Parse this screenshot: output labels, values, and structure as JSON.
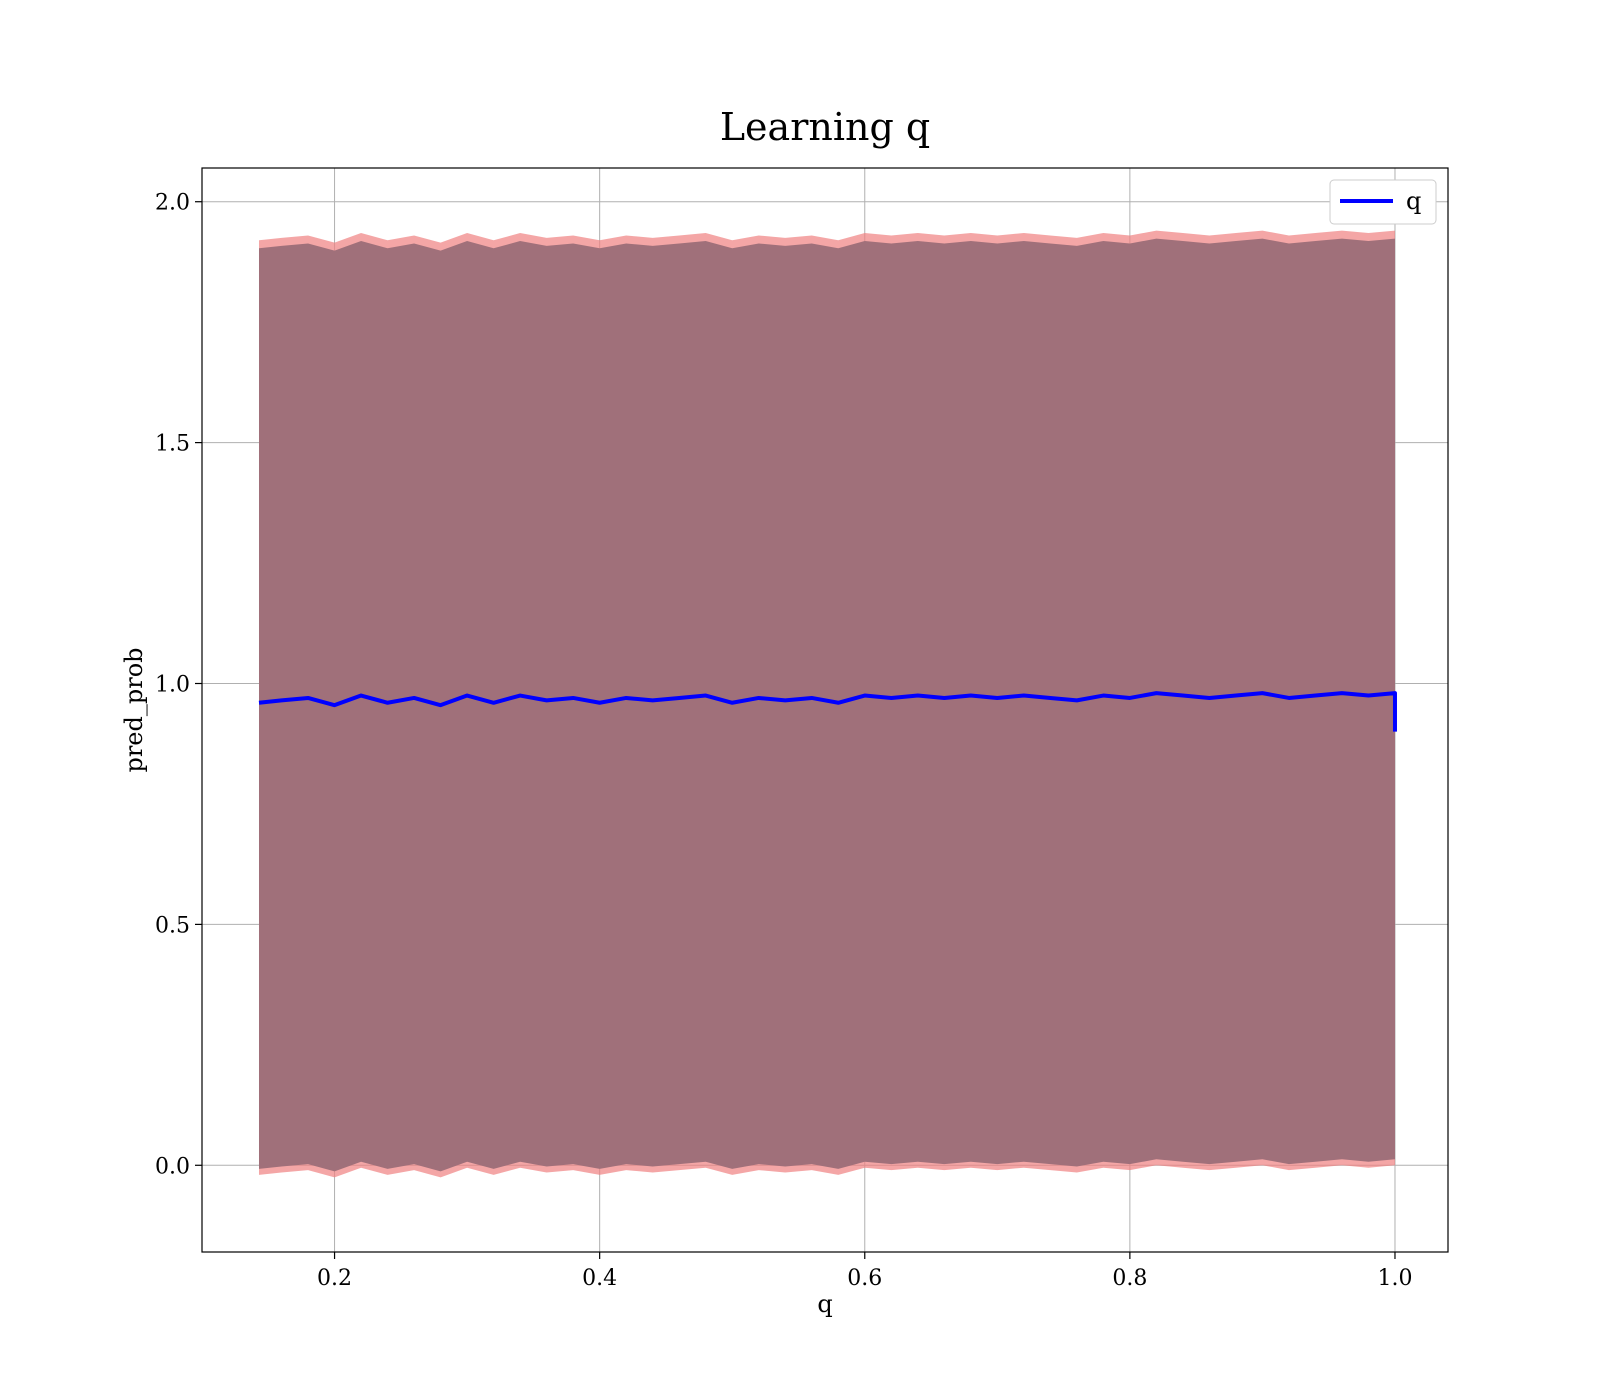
{
  "chart_data": {
    "type": "line",
    "title": "Learning q",
    "xlabel": "q",
    "ylabel": "pred_prob",
    "xlim": [
      0.1,
      1.04
    ],
    "ylim": [
      -0.18,
      2.07
    ],
    "xticks": [
      0.2,
      0.4,
      0.6,
      0.8,
      1.0
    ],
    "xtick_labels": [
      "0.2",
      "0.4",
      "0.6",
      "0.8",
      "1.0"
    ],
    "yticks": [
      0.0,
      0.5,
      1.0,
      1.5,
      2.0
    ],
    "ytick_labels": [
      "0.0",
      "0.5",
      "1.0",
      "1.5",
      "2.0"
    ],
    "grid": true,
    "legend_position": "top-right",
    "series": [
      {
        "name": "q",
        "color": "#0000ff",
        "x": [
          0.143,
          0.16,
          0.18,
          0.2,
          0.22,
          0.24,
          0.26,
          0.28,
          0.3,
          0.32,
          0.34,
          0.36,
          0.38,
          0.4,
          0.42,
          0.44,
          0.46,
          0.48,
          0.5,
          0.52,
          0.54,
          0.56,
          0.58,
          0.6,
          0.62,
          0.64,
          0.66,
          0.68,
          0.7,
          0.72,
          0.74,
          0.76,
          0.78,
          0.8,
          0.82,
          0.84,
          0.86,
          0.88,
          0.9,
          0.92,
          0.94,
          0.96,
          0.98,
          1.0,
          1.0
        ],
        "values": [
          0.96,
          0.965,
          0.97,
          0.955,
          0.975,
          0.96,
          0.97,
          0.955,
          0.975,
          0.96,
          0.975,
          0.965,
          0.97,
          0.96,
          0.97,
          0.965,
          0.97,
          0.975,
          0.96,
          0.97,
          0.965,
          0.97,
          0.96,
          0.975,
          0.97,
          0.975,
          0.97,
          0.975,
          0.97,
          0.975,
          0.97,
          0.965,
          0.975,
          0.97,
          0.98,
          0.975,
          0.97,
          0.975,
          0.98,
          0.97,
          0.975,
          0.98,
          0.975,
          0.98,
          0.9
        ]
      }
    ],
    "band": {
      "color": "#a0707a",
      "edge_color": "#f08080",
      "lower": -0.01,
      "upper": 1.93
    }
  }
}
